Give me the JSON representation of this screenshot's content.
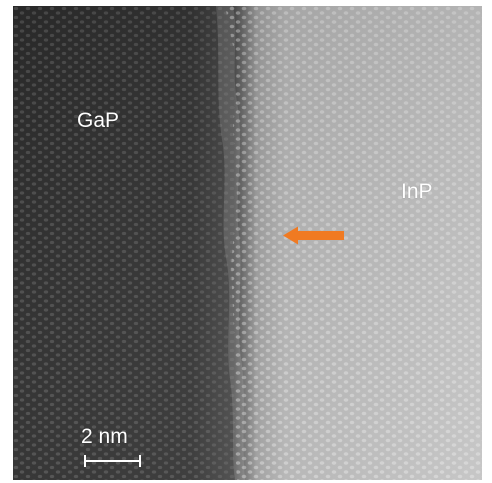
{
  "image": {
    "left_region_label": "GaP",
    "right_region_label": "InP",
    "scale_bar_label": "2 nm",
    "arrow_color": "#f07a22",
    "background_dark_color": "#2f2f2f",
    "background_light_color": "#b8b8b8",
    "atom_dark_color": "#5f5f5f",
    "atom_light_color": "#efefef"
  }
}
